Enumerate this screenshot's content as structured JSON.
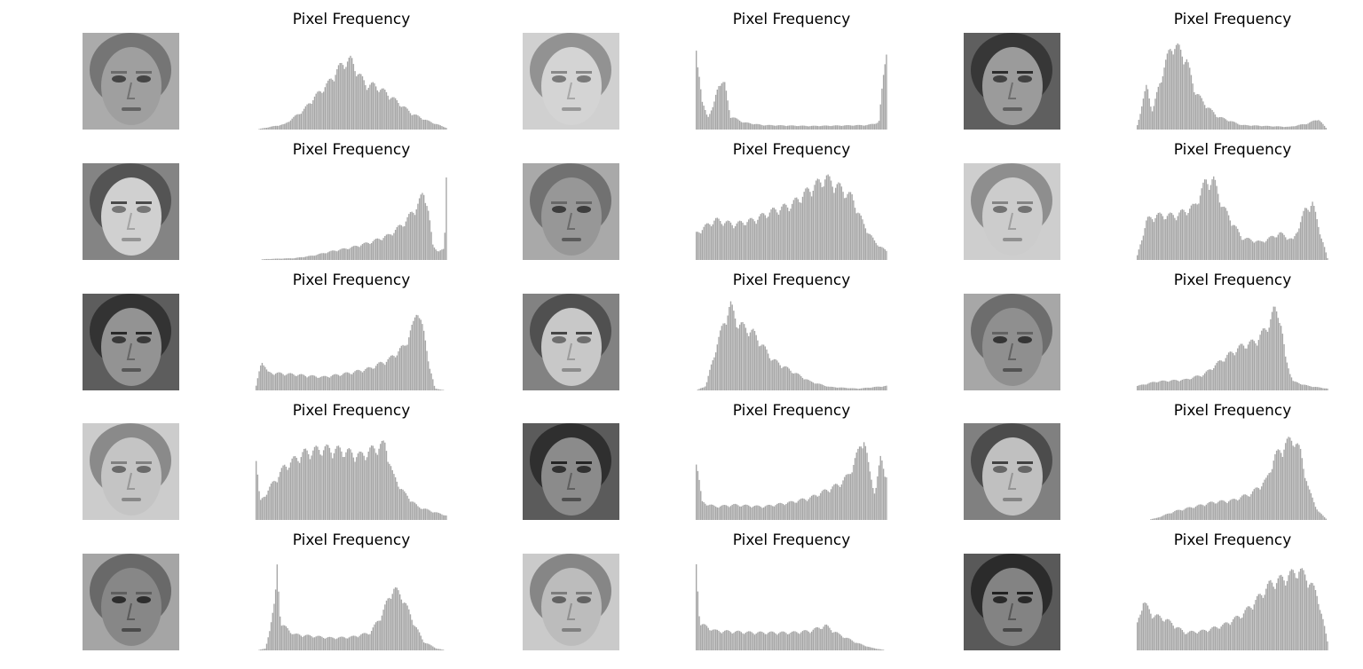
{
  "colors": {
    "bar": "#a6a6a6",
    "background": "#ffffff"
  },
  "chart_data": [
    {
      "type": "bar",
      "title": "Pixel Frequency",
      "image": "face-photo",
      "grid": false,
      "axes": "off",
      "profile": [
        [
          0,
          0
        ],
        [
          0.15,
          0.06
        ],
        [
          0.25,
          0.22
        ],
        [
          0.3,
          0.35
        ],
        [
          0.38,
          0.52
        ],
        [
          0.42,
          0.65
        ],
        [
          0.46,
          0.75
        ],
        [
          0.5,
          0.78
        ],
        [
          0.54,
          0.62
        ],
        [
          0.58,
          0.5
        ],
        [
          0.62,
          0.5
        ],
        [
          0.68,
          0.42
        ],
        [
          0.75,
          0.3
        ],
        [
          0.82,
          0.18
        ],
        [
          0.9,
          0.1
        ],
        [
          1,
          0.02
        ]
      ]
    },
    {
      "type": "bar",
      "title": "Pixel Frequency",
      "image": "face-photo",
      "grid": false,
      "axes": "off",
      "profile": [
        [
          0,
          0.95
        ],
        [
          0.03,
          0.3
        ],
        [
          0.06,
          0.15
        ],
        [
          0.09,
          0.25
        ],
        [
          0.12,
          0.55
        ],
        [
          0.15,
          0.5
        ],
        [
          0.18,
          0.15
        ],
        [
          0.25,
          0.08
        ],
        [
          0.35,
          0.05
        ],
        [
          0.6,
          0.04
        ],
        [
          0.9,
          0.05
        ],
        [
          0.96,
          0.08
        ],
        [
          1,
          0.95
        ]
      ]
    },
    {
      "type": "bar",
      "title": "Pixel Frequency",
      "image": "face-photo",
      "grid": false,
      "axes": "off",
      "profile": [
        [
          0,
          0.05
        ],
        [
          0.05,
          0.5
        ],
        [
          0.08,
          0.2
        ],
        [
          0.12,
          0.55
        ],
        [
          0.18,
          0.95
        ],
        [
          0.22,
          0.9
        ],
        [
          0.26,
          0.78
        ],
        [
          0.3,
          0.45
        ],
        [
          0.35,
          0.3
        ],
        [
          0.42,
          0.15
        ],
        [
          0.55,
          0.05
        ],
        [
          0.8,
          0.03
        ],
        [
          0.9,
          0.07
        ],
        [
          0.95,
          0.12
        ],
        [
          0.98,
          0.05
        ],
        [
          1,
          0
        ]
      ]
    },
    {
      "type": "bar",
      "title": "Pixel Frequency",
      "image": "face-photo",
      "grid": false,
      "axes": "off",
      "profile": [
        [
          0,
          0
        ],
        [
          0.05,
          0.01
        ],
        [
          0.2,
          0.02
        ],
        [
          0.3,
          0.05
        ],
        [
          0.4,
          0.1
        ],
        [
          0.5,
          0.14
        ],
        [
          0.6,
          0.2
        ],
        [
          0.7,
          0.28
        ],
        [
          0.78,
          0.42
        ],
        [
          0.85,
          0.62
        ],
        [
          0.88,
          0.75
        ],
        [
          0.9,
          0.65
        ],
        [
          0.93,
          0.15
        ],
        [
          0.96,
          0.1
        ],
        [
          0.99,
          0.12
        ],
        [
          1,
          0.95
        ]
      ]
    },
    {
      "type": "bar",
      "title": "Pixel Frequency",
      "image": "face-photo",
      "grid": false,
      "axes": "off",
      "profile": [
        [
          0,
          0.3
        ],
        [
          0.05,
          0.38
        ],
        [
          0.1,
          0.45
        ],
        [
          0.2,
          0.4
        ],
        [
          0.3,
          0.45
        ],
        [
          0.4,
          0.55
        ],
        [
          0.5,
          0.62
        ],
        [
          0.6,
          0.8
        ],
        [
          0.68,
          0.92
        ],
        [
          0.75,
          0.82
        ],
        [
          0.82,
          0.7
        ],
        [
          0.88,
          0.4
        ],
        [
          0.94,
          0.2
        ],
        [
          1,
          0.1
        ]
      ]
    },
    {
      "type": "bar",
      "title": "Pixel Frequency",
      "image": "face-photo",
      "grid": false,
      "axes": "off",
      "profile": [
        [
          0,
          0.05
        ],
        [
          0.05,
          0.45
        ],
        [
          0.1,
          0.5
        ],
        [
          0.2,
          0.5
        ],
        [
          0.3,
          0.6
        ],
        [
          0.36,
          0.88
        ],
        [
          0.4,
          0.9
        ],
        [
          0.45,
          0.6
        ],
        [
          0.55,
          0.25
        ],
        [
          0.65,
          0.2
        ],
        [
          0.75,
          0.3
        ],
        [
          0.82,
          0.22
        ],
        [
          0.88,
          0.55
        ],
        [
          0.92,
          0.65
        ],
        [
          0.95,
          0.4
        ],
        [
          1,
          0.02
        ]
      ]
    },
    {
      "type": "bar",
      "title": "Pixel Frequency",
      "image": "face-photo",
      "grid": false,
      "axes": "off",
      "profile": [
        [
          0,
          0.05
        ],
        [
          0.03,
          0.35
        ],
        [
          0.06,
          0.2
        ],
        [
          0.2,
          0.18
        ],
        [
          0.35,
          0.15
        ],
        [
          0.5,
          0.2
        ],
        [
          0.6,
          0.25
        ],
        [
          0.7,
          0.35
        ],
        [
          0.78,
          0.5
        ],
        [
          0.83,
          0.75
        ],
        [
          0.85,
          0.95
        ],
        [
          0.88,
          0.65
        ],
        [
          0.91,
          0.3
        ],
        [
          0.94,
          0.02
        ],
        [
          1,
          0
        ]
      ]
    },
    {
      "type": "bar",
      "title": "Pixel Frequency",
      "image": "face-photo",
      "grid": false,
      "axes": "off",
      "profile": [
        [
          0,
          0
        ],
        [
          0.05,
          0.05
        ],
        [
          0.1,
          0.45
        ],
        [
          0.15,
          0.8
        ],
        [
          0.18,
          0.95
        ],
        [
          0.22,
          0.75
        ],
        [
          0.3,
          0.65
        ],
        [
          0.4,
          0.35
        ],
        [
          0.5,
          0.22
        ],
        [
          0.6,
          0.1
        ],
        [
          0.7,
          0.04
        ],
        [
          0.85,
          0.02
        ],
        [
          1,
          0.05
        ]
      ]
    },
    {
      "type": "bar",
      "title": "Pixel Frequency",
      "image": "face-photo",
      "grid": false,
      "axes": "off",
      "profile": [
        [
          0,
          0.05
        ],
        [
          0.1,
          0.1
        ],
        [
          0.25,
          0.12
        ],
        [
          0.35,
          0.18
        ],
        [
          0.42,
          0.3
        ],
        [
          0.48,
          0.4
        ],
        [
          0.55,
          0.5
        ],
        [
          0.62,
          0.55
        ],
        [
          0.68,
          0.7
        ],
        [
          0.72,
          0.9
        ],
        [
          0.75,
          0.85
        ],
        [
          0.78,
          0.35
        ],
        [
          0.82,
          0.1
        ],
        [
          0.9,
          0.05
        ],
        [
          1,
          0.02
        ]
      ]
    },
    {
      "type": "bar",
      "title": "Pixel Frequency",
      "image": "face-photo",
      "grid": false,
      "axes": "off",
      "profile": [
        [
          0,
          0.7
        ],
        [
          0.02,
          0.2
        ],
        [
          0.1,
          0.45
        ],
        [
          0.15,
          0.6
        ],
        [
          0.25,
          0.75
        ],
        [
          0.35,
          0.8
        ],
        [
          0.45,
          0.78
        ],
        [
          0.55,
          0.72
        ],
        [
          0.62,
          0.8
        ],
        [
          0.68,
          0.85
        ],
        [
          0.72,
          0.5
        ],
        [
          0.78,
          0.3
        ],
        [
          0.85,
          0.15
        ],
        [
          0.92,
          0.1
        ],
        [
          1,
          0.05
        ]
      ]
    },
    {
      "type": "bar",
      "title": "Pixel Frequency",
      "image": "face-photo",
      "grid": false,
      "axes": "off",
      "profile": [
        [
          0,
          0.7
        ],
        [
          0.03,
          0.2
        ],
        [
          0.1,
          0.15
        ],
        [
          0.2,
          0.17
        ],
        [
          0.35,
          0.15
        ],
        [
          0.5,
          0.2
        ],
        [
          0.6,
          0.25
        ],
        [
          0.7,
          0.35
        ],
        [
          0.75,
          0.4
        ],
        [
          0.8,
          0.5
        ],
        [
          0.85,
          0.75
        ],
        [
          0.88,
          0.95
        ],
        [
          0.91,
          0.55
        ],
        [
          0.94,
          0.3
        ],
        [
          0.97,
          0.7
        ],
        [
          1,
          0.5
        ]
      ]
    },
    {
      "type": "bar",
      "title": "Pixel Frequency",
      "image": "face-photo",
      "grid": false,
      "axes": "off",
      "profile": [
        [
          0,
          0
        ],
        [
          0.05,
          0
        ],
        [
          0.1,
          0.02
        ],
        [
          0.2,
          0.1
        ],
        [
          0.3,
          0.15
        ],
        [
          0.4,
          0.2
        ],
        [
          0.5,
          0.22
        ],
        [
          0.6,
          0.3
        ],
        [
          0.68,
          0.45
        ],
        [
          0.72,
          0.7
        ],
        [
          0.78,
          0.85
        ],
        [
          0.82,
          0.92
        ],
        [
          0.86,
          0.75
        ],
        [
          0.9,
          0.35
        ],
        [
          0.95,
          0.1
        ],
        [
          1,
          0
        ]
      ]
    },
    {
      "type": "bar",
      "title": "Pixel Frequency",
      "image": "face-photo",
      "grid": false,
      "axes": "off",
      "profile": [
        [
          0,
          0
        ],
        [
          0.05,
          0.02
        ],
        [
          0.1,
          0.55
        ],
        [
          0.11,
          0.95
        ],
        [
          0.13,
          0.3
        ],
        [
          0.2,
          0.18
        ],
        [
          0.3,
          0.16
        ],
        [
          0.4,
          0.14
        ],
        [
          0.5,
          0.15
        ],
        [
          0.6,
          0.2
        ],
        [
          0.66,
          0.4
        ],
        [
          0.72,
          0.7
        ],
        [
          0.77,
          0.6
        ],
        [
          0.82,
          0.35
        ],
        [
          0.88,
          0.1
        ],
        [
          0.95,
          0.02
        ],
        [
          1,
          0
        ]
      ]
    },
    {
      "type": "bar",
      "title": "Pixel Frequency",
      "image": "face-photo",
      "grid": false,
      "axes": "off",
      "profile": [
        [
          0,
          0.95
        ],
        [
          0.02,
          0.3
        ],
        [
          0.1,
          0.22
        ],
        [
          0.3,
          0.2
        ],
        [
          0.5,
          0.2
        ],
        [
          0.6,
          0.22
        ],
        [
          0.68,
          0.28
        ],
        [
          0.7,
          0.25
        ],
        [
          0.75,
          0.18
        ],
        [
          0.85,
          0.08
        ],
        [
          0.92,
          0.03
        ],
        [
          1,
          0
        ]
      ]
    },
    {
      "type": "bar",
      "title": "Pixel Frequency",
      "image": "face-photo",
      "grid": false,
      "axes": "off",
      "profile": [
        [
          0,
          0.3
        ],
        [
          0.03,
          0.55
        ],
        [
          0.08,
          0.4
        ],
        [
          0.15,
          0.35
        ],
        [
          0.25,
          0.2
        ],
        [
          0.35,
          0.22
        ],
        [
          0.45,
          0.28
        ],
        [
          0.55,
          0.4
        ],
        [
          0.62,
          0.55
        ],
        [
          0.7,
          0.75
        ],
        [
          0.78,
          0.82
        ],
        [
          0.85,
          0.9
        ],
        [
          0.9,
          0.8
        ],
        [
          0.95,
          0.6
        ],
        [
          1,
          0.1
        ]
      ]
    }
  ]
}
